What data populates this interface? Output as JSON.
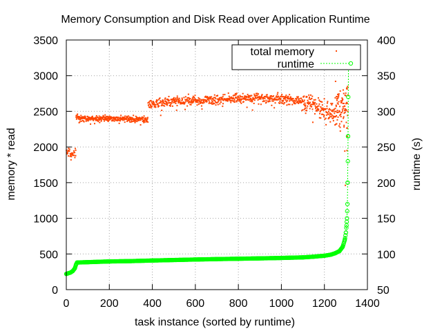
{
  "chart_data": {
    "type": "scatter",
    "title": "Memory Consumption and Disk Read over Application Runtime",
    "xlabel": "task instance (sorted by runtime)",
    "ylabel": "memory * read",
    "y2label": "runtime (s)",
    "xlim": [
      0,
      1400
    ],
    "ylim": [
      0,
      3500
    ],
    "y2lim": [
      50,
      400
    ],
    "xticks": [
      0,
      200,
      400,
      600,
      800,
      1000,
      1200,
      1400
    ],
    "yticks": [
      0,
      500,
      1000,
      1500,
      2000,
      2500,
      3000,
      3500
    ],
    "y2ticks": [
      50,
      100,
      150,
      200,
      250,
      300,
      350,
      400
    ],
    "grid": true,
    "legend_position": "top-right",
    "colors": {
      "total_memory": "#ff4500",
      "runtime": "#00ff00"
    },
    "series": [
      {
        "name": "total memory",
        "axis": "y",
        "style": "points",
        "segments": [
          {
            "x_start": 0,
            "x_end": 45,
            "count": 30,
            "points": [
              [
                0,
                1920
              ],
              [
                45,
                1905
              ]
            ],
            "spread": 55
          },
          {
            "x_start": 45,
            "x_end": 380,
            "count": 330,
            "points": [
              [
                45,
                2410
              ],
              [
                150,
                2400
              ],
              [
                250,
                2395
              ],
              [
                380,
                2385
              ]
            ],
            "spread": 35
          },
          {
            "x_start": 380,
            "x_end": 1100,
            "count": 620,
            "points": [
              [
                380,
                2600
              ],
              [
                500,
                2645
              ],
              [
                700,
                2670
              ],
              [
                900,
                2690
              ],
              [
                1100,
                2650
              ]
            ],
            "spread": 55
          },
          {
            "x_start": 1100,
            "x_end": 1250,
            "count": 150,
            "points": [
              [
                1100,
                2640
              ],
              [
                1180,
                2560
              ],
              [
                1250,
                2460
              ]
            ],
            "spread": 110
          },
          {
            "x_start": 1250,
            "x_end": 1310,
            "count": 90,
            "points": [
              [
                1250,
                2620
              ],
              [
                1310,
                2500
              ]
            ],
            "spread": 280
          }
        ],
        "outliers": [
          [
            1305,
            1950
          ],
          [
            1307,
            2150
          ],
          [
            22,
            1820
          ],
          [
            1290,
            2750
          ],
          [
            1260,
            2380
          ],
          [
            1240,
            2400
          ]
        ]
      },
      {
        "name": "runtime",
        "axis": "y2",
        "style": "linespoints",
        "values": [
          [
            0,
            72
          ],
          [
            10,
            73
          ],
          [
            20,
            74
          ],
          [
            30,
            76
          ],
          [
            40,
            80
          ],
          [
            45,
            85
          ],
          [
            50,
            88
          ],
          [
            100,
            88.5
          ],
          [
            200,
            89.5
          ],
          [
            300,
            90
          ],
          [
            400,
            90.8
          ],
          [
            500,
            91.5
          ],
          [
            600,
            92.2
          ],
          [
            700,
            92.8
          ],
          [
            800,
            93.3
          ],
          [
            900,
            93.8
          ],
          [
            1000,
            94.4
          ],
          [
            1100,
            95.2
          ],
          [
            1150,
            96.2
          ],
          [
            1200,
            97.5
          ],
          [
            1230,
            99
          ],
          [
            1250,
            101
          ],
          [
            1270,
            104
          ],
          [
            1285,
            110
          ],
          [
            1295,
            120
          ],
          [
            1300,
            130
          ],
          [
            1303,
            140
          ],
          [
            1305,
            150
          ],
          [
            1307,
            170
          ],
          [
            1308,
            200
          ],
          [
            1309,
            230
          ],
          [
            1310,
            265
          ],
          [
            1311,
            320
          ],
          [
            1312,
            368
          ]
        ]
      }
    ]
  }
}
